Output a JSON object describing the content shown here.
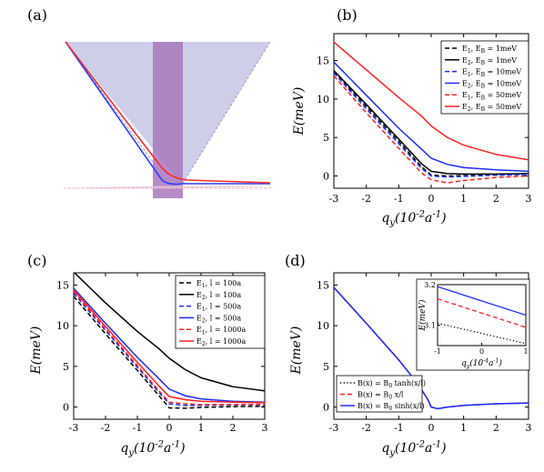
{
  "panel_a": {
    "label": "(a)",
    "colors": {
      "cone": "#c6c6e4",
      "stripe": "#a878bc",
      "blue": "#2b3dff",
      "red": "#ff2a2a"
    }
  },
  "chart_data": [
    {
      "id": "b",
      "label": "(b)",
      "type": "line",
      "xlabel": "q_y(10^{-2}a^{-1})",
      "ylabel": "E(meV)",
      "xlim": [
        -3,
        3
      ],
      "ylim": [
        -1.6,
        18.5
      ],
      "xticks": [
        -3,
        -2,
        -1,
        0,
        1,
        2,
        3
      ],
      "yticks": [
        0,
        5,
        10,
        15
      ],
      "legend_position": "top-right",
      "series": [
        {
          "name": "E_1, E_B = 1meV",
          "color": "#000000",
          "dash": "dashed",
          "x": [
            -3,
            -2,
            -1,
            -0.3,
            0,
            0.5,
            1,
            2,
            3
          ],
          "y": [
            13.6,
            9.0,
            4.5,
            1.2,
            0.1,
            0.0,
            0.05,
            0.1,
            0.2
          ]
        },
        {
          "name": "E_2, E_B = 1meV",
          "color": "#000000",
          "dash": "solid",
          "x": [
            -3,
            -2,
            -1,
            -0.3,
            0,
            0.5,
            1,
            2,
            3
          ],
          "y": [
            13.7,
            9.3,
            4.8,
            1.6,
            0.6,
            0.3,
            0.25,
            0.25,
            0.3
          ]
        },
        {
          "name": "E_1, E_B = 10meV",
          "color": "#1a2cff",
          "dash": "dashed",
          "x": [
            -3,
            -2,
            -1,
            -0.3,
            0,
            0.5,
            1,
            2,
            3
          ],
          "y": [
            13.4,
            8.7,
            4.2,
            1.0,
            0.0,
            -0.15,
            -0.05,
            0.1,
            0.2
          ]
        },
        {
          "name": "E_2, E_B = 10meV",
          "color": "#1a2cff",
          "dash": "solid",
          "x": [
            -3,
            -2,
            -1,
            -0.3,
            0,
            0.5,
            1,
            2,
            3
          ],
          "y": [
            14.8,
            10.5,
            6.2,
            3.5,
            2.3,
            1.5,
            1.1,
            0.8,
            0.6
          ]
        },
        {
          "name": "E_1, E_B = 50meV",
          "color": "#ff2020",
          "dash": "dashed",
          "x": [
            -3,
            -2,
            -1,
            -0.3,
            0,
            0.5,
            1,
            2,
            3
          ],
          "y": [
            13.0,
            8.2,
            3.6,
            0.4,
            -0.5,
            -0.9,
            -0.6,
            -0.2,
            0.0
          ]
        },
        {
          "name": "E_2, E_B = 50meV",
          "color": "#ff2020",
          "dash": "solid",
          "x": [
            -3,
            -2,
            -1,
            -0.3,
            0,
            0.5,
            1,
            2,
            3
          ],
          "y": [
            17.4,
            13.8,
            10.2,
            7.8,
            6.5,
            5.0,
            4.0,
            2.8,
            2.1
          ]
        }
      ]
    },
    {
      "id": "c",
      "label": "(c)",
      "type": "line",
      "xlabel": "q_y(10^{-2}a^{-1})",
      "ylabel": "E(meV)",
      "xlim": [
        -3,
        3
      ],
      "ylim": [
        -1.5,
        16.5
      ],
      "xticks": [
        -3,
        -2,
        -1,
        0,
        1,
        2,
        3
      ],
      "yticks": [
        0,
        5,
        10,
        15
      ],
      "legend_position": "top-right",
      "series": [
        {
          "name": "E_1, l = 100a",
          "color": "#000000",
          "dash": "dashed",
          "x": [
            -3,
            -2,
            -1,
            -0.3,
            0,
            0.5,
            1,
            2,
            3
          ],
          "y": [
            13.6,
            9.0,
            4.5,
            1.3,
            -0.1,
            -0.15,
            -0.05,
            0.05,
            0.1
          ]
        },
        {
          "name": "E_2, l = 100a",
          "color": "#000000",
          "dash": "solid",
          "x": [
            -3,
            -2,
            -1,
            -0.3,
            0,
            0.5,
            1,
            2,
            3
          ],
          "y": [
            16.6,
            12.8,
            9.3,
            7.1,
            6.0,
            4.6,
            3.6,
            2.5,
            2.0
          ]
        },
        {
          "name": "E_1, l = 500a",
          "color": "#1a2cff",
          "dash": "dashed",
          "x": [
            -3,
            -2,
            -1,
            -0.3,
            0,
            0.5,
            1,
            2,
            3
          ],
          "y": [
            14.0,
            9.4,
            4.9,
            1.7,
            0.4,
            0.2,
            0.2,
            0.25,
            0.3
          ]
        },
        {
          "name": "E_2, l = 500a",
          "color": "#1a2cff",
          "dash": "solid",
          "x": [
            -3,
            -2,
            -1,
            -0.3,
            0,
            0.5,
            1,
            2,
            3
          ],
          "y": [
            14.6,
            10.3,
            6.1,
            3.4,
            2.2,
            1.4,
            1.0,
            0.7,
            0.6
          ]
        },
        {
          "name": "E_1, l = 1000a",
          "color": "#ff2020",
          "dash": "dashed",
          "x": [
            -3,
            -2,
            -1,
            -0.3,
            0,
            0.5,
            1,
            2,
            3
          ],
          "y": [
            14.2,
            9.6,
            5.1,
            1.9,
            0.6,
            0.4,
            0.3,
            0.3,
            0.35
          ]
        },
        {
          "name": "E_2, l = 1000a",
          "color": "#ff2020",
          "dash": "solid",
          "x": [
            -3,
            -2,
            -1,
            -0.3,
            0,
            0.5,
            1,
            2,
            3
          ],
          "y": [
            14.4,
            9.9,
            5.5,
            2.5,
            1.3,
            0.9,
            0.7,
            0.6,
            0.55
          ]
        }
      ]
    },
    {
      "id": "d",
      "label": "(d)",
      "type": "line",
      "xlabel": "q_y(10^{-2}a^{-1})",
      "ylabel": "E(meV)",
      "xlim": [
        -3,
        3
      ],
      "ylim": [
        -1.5,
        16.5
      ],
      "xticks": [
        -3,
        -2,
        -1,
        0,
        1,
        2,
        3
      ],
      "yticks": [
        0,
        5,
        10,
        15
      ],
      "legend_position": "bottom-left",
      "series": [
        {
          "name": "B(x) = B_0 tanh(x/l)",
          "color": "#000000",
          "dash": "dotted",
          "x": [
            -3,
            -2,
            -1,
            -0.4,
            -0.1,
            0,
            0.2,
            0.5,
            1,
            2,
            3
          ],
          "y": [
            14.7,
            10.3,
            5.8,
            2.8,
            0.9,
            0.0,
            -0.2,
            0.0,
            0.2,
            0.4,
            0.5
          ]
        },
        {
          "name": "B(x) = B_0 x/l",
          "color": "#ff2020",
          "dash": "dashed",
          "x": [
            -3,
            -2,
            -1,
            -0.4,
            -0.1,
            0,
            0.2,
            0.5,
            1,
            2,
            3
          ],
          "y": [
            14.7,
            10.3,
            5.8,
            2.8,
            0.9,
            0.0,
            -0.2,
            0.0,
            0.2,
            0.4,
            0.5
          ]
        },
        {
          "name": "B(x) = B_0 sinh(x/l)",
          "color": "#1a2cff",
          "dash": "solid",
          "x": [
            -3,
            -2,
            -1,
            -0.4,
            -0.1,
            0,
            0.2,
            0.5,
            1,
            2,
            3
          ],
          "y": [
            14.7,
            10.3,
            5.8,
            2.8,
            0.9,
            0.0,
            -0.2,
            0.0,
            0.2,
            0.4,
            0.5
          ]
        }
      ],
      "inset": {
        "type": "line",
        "xlabel": "q_y(10^{-4}a^{-1})",
        "ylabel": "E(meV)",
        "xlim": [
          -1,
          1
        ],
        "ylim": [
          3.05,
          3.2
        ],
        "xticks": [
          -1,
          0,
          1
        ],
        "yticks": [
          3.1,
          3.2
        ],
        "series": [
          {
            "color": "#000000",
            "dash": "dotted",
            "x": [
              -1,
              1
            ],
            "y": [
              3.105,
              3.055
            ]
          },
          {
            "color": "#ff2020",
            "dash": "dashed",
            "x": [
              -1,
              1
            ],
            "y": [
              3.165,
              3.095
            ]
          },
          {
            "color": "#1a2cff",
            "dash": "solid",
            "x": [
              -1,
              1
            ],
            "y": [
              3.195,
              3.125
            ]
          }
        ]
      }
    }
  ]
}
